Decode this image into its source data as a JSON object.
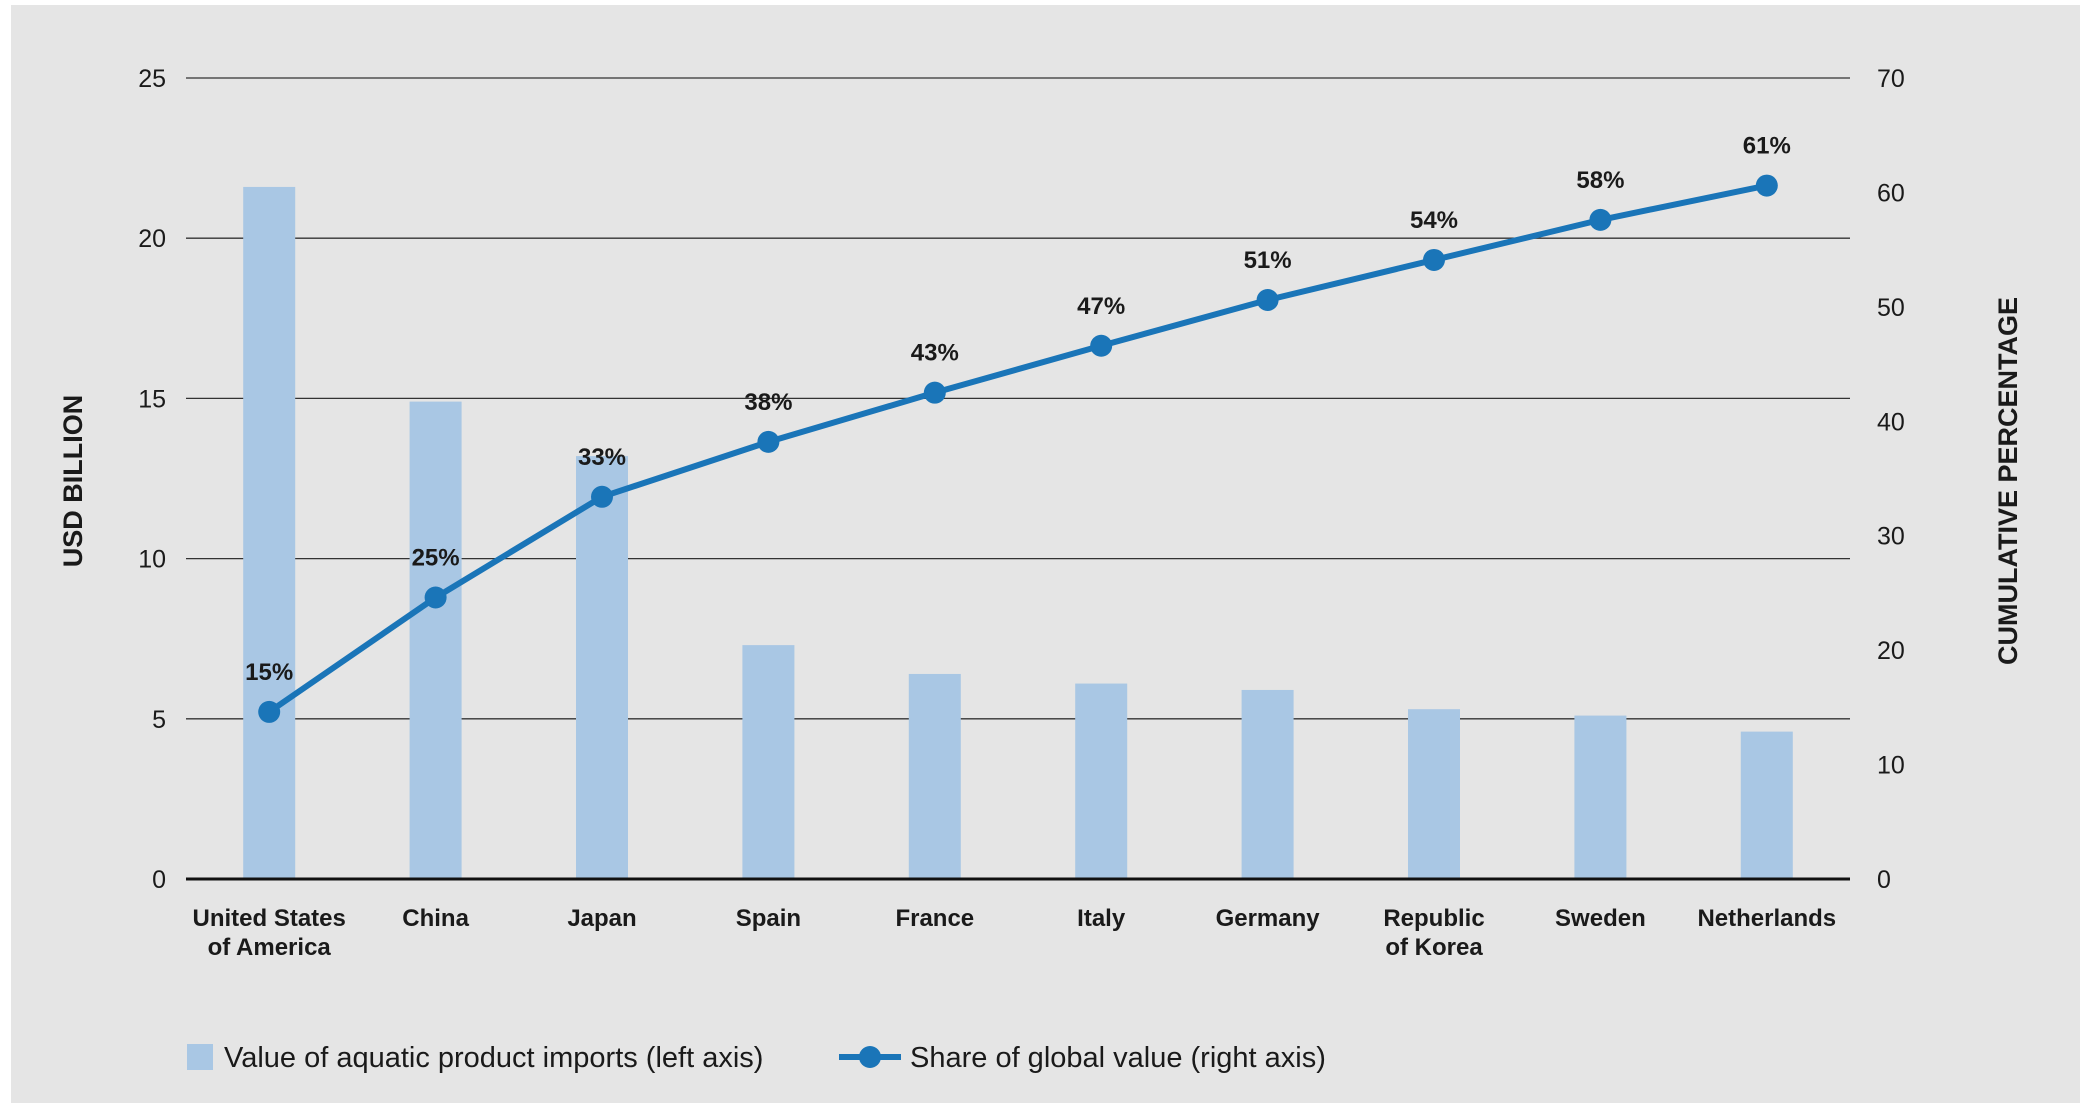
{
  "chart_data": {
    "type": "bar",
    "categories": [
      [
        "United States",
        "of America"
      ],
      [
        "China"
      ],
      [
        "Japan"
      ],
      [
        "Spain"
      ],
      [
        "France"
      ],
      [
        "Italy"
      ],
      [
        "Germany"
      ],
      [
        "Republic",
        "of Korea"
      ],
      [
        "Sweden"
      ],
      [
        "Netherlands"
      ]
    ],
    "series": [
      {
        "name": "Value of aquatic product imports (left axis)",
        "type": "bar",
        "axis": "left",
        "values": [
          21.6,
          14.9,
          13.2,
          7.3,
          6.4,
          6.1,
          5.9,
          5.3,
          5.1,
          4.6
        ]
      },
      {
        "name": "Share of global value (right axis)",
        "type": "line",
        "axis": "right",
        "values": [
          14.6,
          24.6,
          33.4,
          38.2,
          42.5,
          46.6,
          50.6,
          54.1,
          57.6,
          60.6
        ],
        "labels": [
          "15%",
          "25%",
          "33%",
          "38%",
          "43%",
          "47%",
          "51%",
          "54%",
          "58%",
          "61%"
        ]
      }
    ],
    "ylabel": "USD BILLION",
    "y2label": "CUMULATIVE PERCENTAGE",
    "ylim": [
      0,
      25
    ],
    "y2lim": [
      0,
      70
    ],
    "yticks": [
      "0",
      "5",
      "10",
      "15",
      "20",
      "25"
    ],
    "y2ticks": [
      "0",
      "10",
      "20",
      "30",
      "40",
      "50",
      "60",
      "70"
    ],
    "grid": true,
    "legend_position": "bottom-left",
    "colors": {
      "bar": "#a9c7e4",
      "line": "#1a75b8",
      "background": "#e5e5e5",
      "gridline": "#333333"
    }
  }
}
